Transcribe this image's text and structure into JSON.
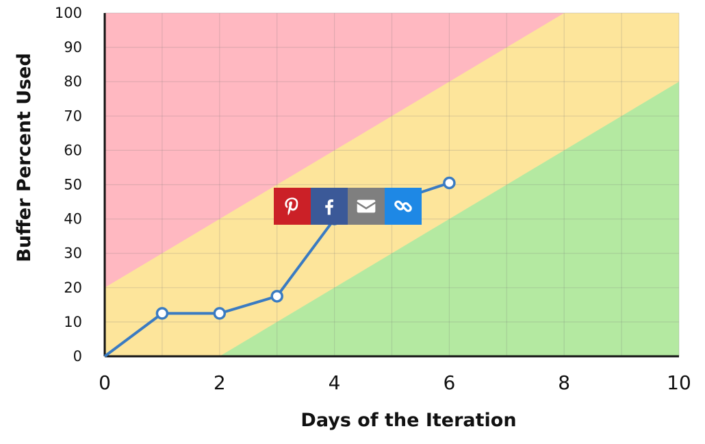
{
  "chart_data": {
    "type": "line",
    "xlabel": "Days of the Iteration",
    "ylabel": "Buffer Percent Used",
    "xlim": [
      0,
      10
    ],
    "ylim": [
      0,
      100
    ],
    "xticks": [
      0,
      2,
      4,
      6,
      8,
      10
    ],
    "yticks": [
      0,
      10,
      20,
      30,
      40,
      50,
      60,
      70,
      80,
      90,
      100
    ],
    "grid": true,
    "zones": [
      {
        "name": "red",
        "color": "#ffb8c1",
        "lower_boundary": [
          [
            0,
            20
          ],
          [
            8,
            100
          ]
        ]
      },
      {
        "name": "yellow",
        "color": "#fde59b",
        "lower_boundary": [
          [
            2,
            0
          ],
          [
            10,
            80
          ]
        ]
      },
      {
        "name": "green",
        "color": "#b4e9a1"
      }
    ],
    "series": [
      {
        "color": "#3a7bc2",
        "x": [
          0,
          1,
          2,
          3,
          4,
          5,
          6
        ],
        "y": [
          0,
          12.5,
          12.5,
          17.5,
          40,
          45,
          50.5
        ]
      }
    ]
  },
  "share_bar": {
    "buttons": [
      {
        "name": "pinterest",
        "icon": "pinterest-icon",
        "color": "#cb2027"
      },
      {
        "name": "facebook",
        "icon": "facebook-icon",
        "color": "#3b5998"
      },
      {
        "name": "email",
        "icon": "email-icon",
        "color": "#7f7f7f"
      },
      {
        "name": "link",
        "icon": "link-icon",
        "color": "#1e88e5"
      }
    ]
  }
}
